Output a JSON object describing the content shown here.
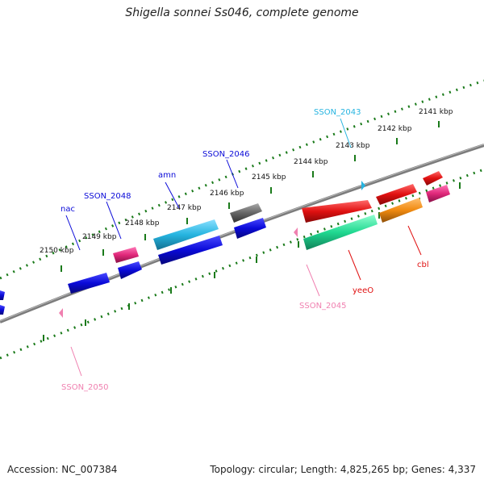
{
  "title": "Shigella sonnei Ss046, complete genome",
  "footer": {
    "accession": "Accession: NC_007384",
    "topology": "Topology: circular; Length: 4,825,265 bp; Genes: 4,337"
  },
  "colors": {
    "backbone": "#808080",
    "ticks": "#1a7a1a",
    "blue": "#0a0ad8",
    "cyan": "#26b4e0",
    "magenta": "#e0287a",
    "red": "#e01010",
    "green": "#20d890",
    "orange": "#f08a10",
    "gray": "#666666",
    "pink": "#f080b0"
  },
  "ticks": [
    {
      "label": "2141 kbp"
    },
    {
      "label": "2142 kbp"
    },
    {
      "label": "2143 kbp"
    },
    {
      "label": "2144 kbp"
    },
    {
      "label": "2145 kbp"
    },
    {
      "label": "2146 kbp"
    },
    {
      "label": "2147 kbp"
    },
    {
      "label": "2148 kbp"
    },
    {
      "label": "2149 kbp"
    },
    {
      "label": "2150 kbp"
    }
  ],
  "gene_labels": [
    {
      "name": "SSON_2043",
      "color": "cyan"
    },
    {
      "name": "SSON_2046",
      "color": "blue"
    },
    {
      "name": "amn",
      "color": "blue"
    },
    {
      "name": "SSON_2048",
      "color": "blue"
    },
    {
      "name": "nac",
      "color": "blue"
    },
    {
      "name": "cbl",
      "color": "red"
    },
    {
      "name": "yeeO",
      "color": "red"
    },
    {
      "name": "SSON_2045",
      "color": "pink"
    },
    {
      "name": "SSON_2050",
      "color": "pink"
    }
  ]
}
